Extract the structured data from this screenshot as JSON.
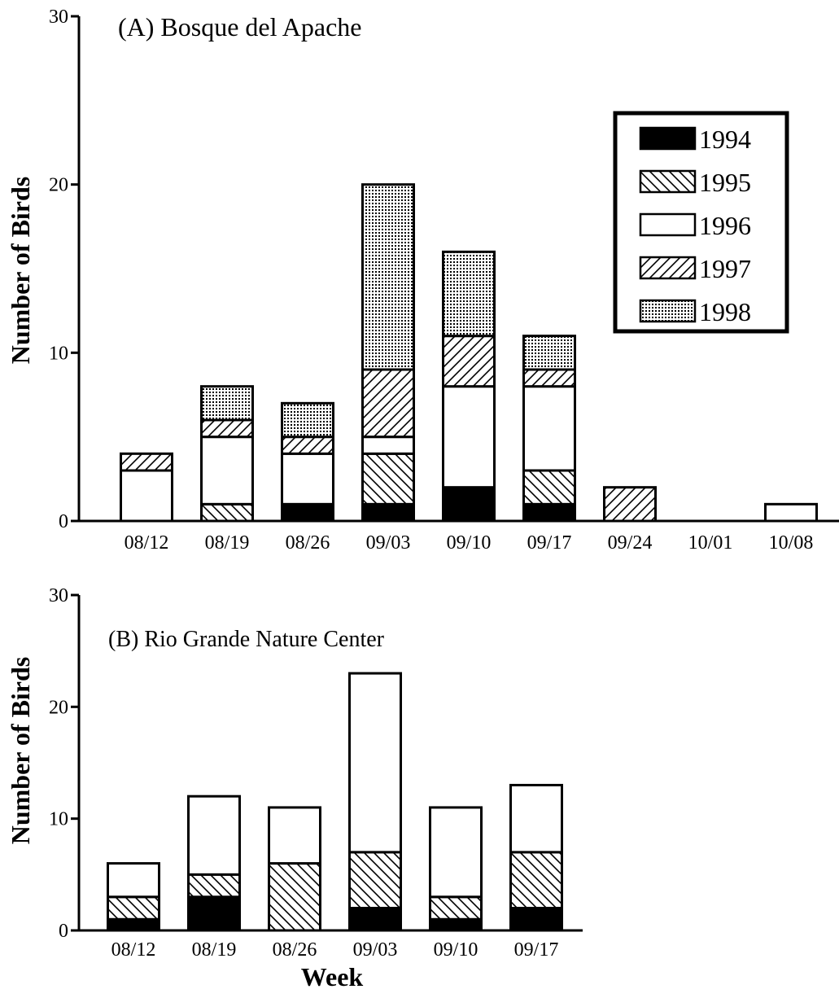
{
  "chart_data": [
    {
      "type": "bar",
      "stacked": true,
      "title": "(A)  Bosque del Apache",
      "ylabel": "Number of Birds",
      "xlabel": "",
      "ylim": [
        0,
        30
      ],
      "yticks": [
        "0",
        "10",
        "20",
        "30"
      ],
      "categories": [
        "08/12",
        "08/19",
        "08/26",
        "09/03",
        "09/10",
        "09/17",
        "09/24",
        "10/01",
        "10/08"
      ],
      "legend_position": "top-right",
      "series": [
        {
          "name": "1994",
          "pattern": "solid",
          "values": [
            0,
            0,
            1,
            1,
            2,
            1,
            0,
            0,
            0
          ]
        },
        {
          "name": "1995",
          "pattern": "back-hatch",
          "values": [
            0,
            1,
            0,
            3,
            0,
            2,
            0,
            0,
            0
          ]
        },
        {
          "name": "1996",
          "pattern": "empty",
          "values": [
            3,
            4,
            3,
            1,
            6,
            5,
            0,
            0,
            1
          ]
        },
        {
          "name": "1997",
          "pattern": "forward-hatch",
          "values": [
            1,
            1,
            1,
            4,
            3,
            1,
            2,
            0,
            0
          ]
        },
        {
          "name": "1998",
          "pattern": "dots",
          "values": [
            0,
            2,
            2,
            11,
            5,
            2,
            0,
            0,
            0
          ]
        }
      ]
    },
    {
      "type": "bar",
      "stacked": true,
      "title": "(B) Rio Grande Nature Center",
      "ylabel": "Number of Birds",
      "xlabel": "Week",
      "ylim": [
        0,
        30
      ],
      "yticks": [
        "0",
        "10",
        "20",
        "30"
      ],
      "categories": [
        "08/12",
        "08/19",
        "08/26",
        "09/03",
        "09/10",
        "09/17"
      ],
      "series": [
        {
          "name": "1994",
          "pattern": "solid",
          "values": [
            1,
            3,
            0,
            2,
            1,
            2
          ]
        },
        {
          "name": "1995",
          "pattern": "back-hatch",
          "values": [
            2,
            2,
            6,
            5,
            2,
            5
          ]
        },
        {
          "name": "1996",
          "pattern": "empty",
          "values": [
            3,
            7,
            5,
            16,
            8,
            6
          ]
        }
      ]
    }
  ]
}
